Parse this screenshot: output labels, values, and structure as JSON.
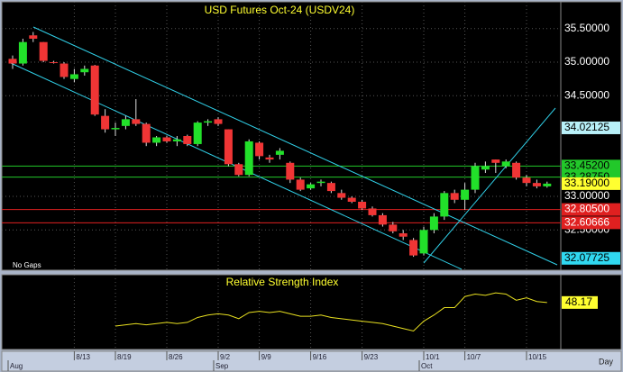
{
  "chart_data": {
    "type": "candlestick",
    "title": "USD Futures Oct-24 (USDV24)",
    "note": "No Gaps",
    "interval": "Day",
    "up_color": "#22e02a",
    "down_color": "#f03535",
    "candles": {
      "open": [
        35.05,
        34.98,
        35.4,
        35.3,
        35.0,
        34.98,
        34.75,
        34.85,
        34.95,
        34.2,
        34.0,
        34.05,
        34.15,
        34.08,
        33.8,
        33.88,
        33.82,
        33.9,
        33.78,
        34.1,
        34.15,
        34.0,
        33.48,
        33.32,
        33.8,
        33.58,
        33.62,
        33.5,
        33.25,
        33.12,
        33.2,
        33.2,
        33.05,
        32.98,
        32.92,
        32.82,
        32.72,
        32.58,
        32.45,
        32.35,
        32.15,
        32.5,
        32.7,
        33.05,
        32.95,
        33.1,
        33.4,
        33.55,
        33.45,
        33.5,
        33.28,
        33.2,
        33.15
      ],
      "high": [
        35.1,
        35.35,
        35.45,
        35.3,
        35.02,
        35.0,
        34.9,
        34.95,
        34.96,
        34.3,
        34.1,
        34.2,
        34.45,
        34.1,
        33.9,
        33.9,
        33.9,
        33.92,
        34.12,
        34.15,
        34.18,
        34.0,
        33.5,
        33.85,
        33.82,
        33.62,
        33.72,
        33.52,
        33.28,
        33.2,
        33.25,
        33.22,
        33.1,
        33.0,
        32.95,
        32.85,
        32.75,
        32.62,
        32.5,
        32.38,
        32.55,
        32.75,
        33.08,
        33.1,
        33.2,
        33.5,
        33.52,
        33.55,
        33.55,
        33.52,
        33.32,
        33.25,
        33.22
      ],
      "low": [
        34.9,
        34.95,
        35.3,
        35.0,
        34.98,
        34.75,
        34.7,
        34.8,
        34.2,
        33.95,
        33.9,
        34.0,
        34.05,
        33.75,
        33.75,
        33.8,
        33.75,
        33.75,
        33.75,
        34.05,
        34.05,
        33.45,
        33.3,
        33.3,
        33.55,
        33.5,
        33.55,
        33.2,
        33.08,
        33.1,
        33.15,
        33.05,
        32.95,
        32.9,
        32.8,
        32.7,
        32.55,
        32.45,
        32.35,
        32.1,
        32.12,
        32.45,
        32.65,
        32.9,
        32.8,
        33.05,
        33.35,
        33.35,
        33.42,
        33.25,
        33.15,
        33.12,
        33.13
      ],
      "close": [
        34.98,
        35.3,
        35.35,
        35.02,
        34.99,
        34.78,
        34.82,
        34.9,
        34.22,
        34.0,
        34.02,
        34.15,
        34.08,
        33.8,
        33.88,
        33.82,
        33.85,
        33.78,
        34.1,
        34.12,
        34.08,
        33.48,
        33.32,
        33.82,
        33.6,
        33.55,
        33.68,
        33.25,
        33.1,
        33.18,
        33.22,
        33.08,
        32.98,
        32.92,
        32.82,
        32.72,
        32.58,
        32.48,
        32.4,
        32.12,
        32.5,
        32.7,
        33.05,
        32.95,
        33.1,
        33.45,
        33.45,
        33.5,
        33.52,
        33.28,
        33.2,
        33.15,
        33.19
      ]
    },
    "ylim": [
      31.9,
      35.9
    ],
    "yticks": [
      {
        "value": 35.5,
        "label": "35.50000"
      },
      {
        "value": 35.0,
        "label": "35.00000"
      },
      {
        "value": 34.5,
        "label": "34.50000"
      },
      {
        "value": 33.0,
        "label": "33.00000"
      },
      {
        "value": 32.5,
        "label": "32.50000"
      }
    ],
    "levels": [
      {
        "value": 34.02125,
        "label": "34.02125",
        "color": "#b8f0f8",
        "line": false
      },
      {
        "value": 33.452,
        "label": "33.45200",
        "color": "#22c82a",
        "line": true
      },
      {
        "value": 33.2875,
        "label": "33.28750",
        "color": "#22c82a",
        "line": true
      },
      {
        "value": 33.19,
        "label": "33.19000",
        "color": "#ffff30",
        "line": false
      },
      {
        "value": 32.805,
        "label": "32.80500",
        "color": "#e02020",
        "line": true
      },
      {
        "value": 32.60666,
        "label": "32.60666",
        "color": "#e02020",
        "line": true
      },
      {
        "value": 32.07725,
        "label": "32.07725",
        "color": "#30d8f0",
        "line": false
      }
    ],
    "xticks": [
      {
        "value": 6,
        "label": "8/13"
      },
      {
        "value": 10,
        "label": "8/19"
      },
      {
        "value": 15,
        "label": "8/26"
      },
      {
        "value": 20,
        "label": "9/2"
      },
      {
        "value": 24,
        "label": "9/9"
      },
      {
        "value": 29,
        "label": "9/16"
      },
      {
        "value": 34,
        "label": "9/23"
      },
      {
        "value": 40,
        "label": "10/1"
      },
      {
        "value": 44,
        "label": "10/7"
      },
      {
        "value": 50,
        "label": "10/15"
      }
    ],
    "months": [
      {
        "value": 0,
        "label": "Aug"
      },
      {
        "value": 20,
        "label": "Sep"
      },
      {
        "value": 40,
        "label": "Oct"
      }
    ],
    "indicator": {
      "type": "line",
      "title": "Relative Strength Index",
      "color": "#e8e020",
      "ylim": [
        10,
        70
      ],
      "last": {
        "value": 48.17,
        "label": "48.17"
      },
      "values": [
        null,
        null,
        null,
        null,
        null,
        null,
        null,
        null,
        null,
        null,
        29,
        30,
        31,
        30,
        31,
        32,
        31,
        32,
        36,
        38,
        39,
        38,
        35,
        40,
        41,
        40,
        41,
        39,
        37,
        37,
        38,
        36,
        35,
        34,
        33,
        32,
        31,
        29,
        27,
        25,
        33,
        38,
        44,
        44,
        53,
        55,
        54,
        56,
        55,
        50,
        52,
        49,
        48.17
      ]
    }
  }
}
